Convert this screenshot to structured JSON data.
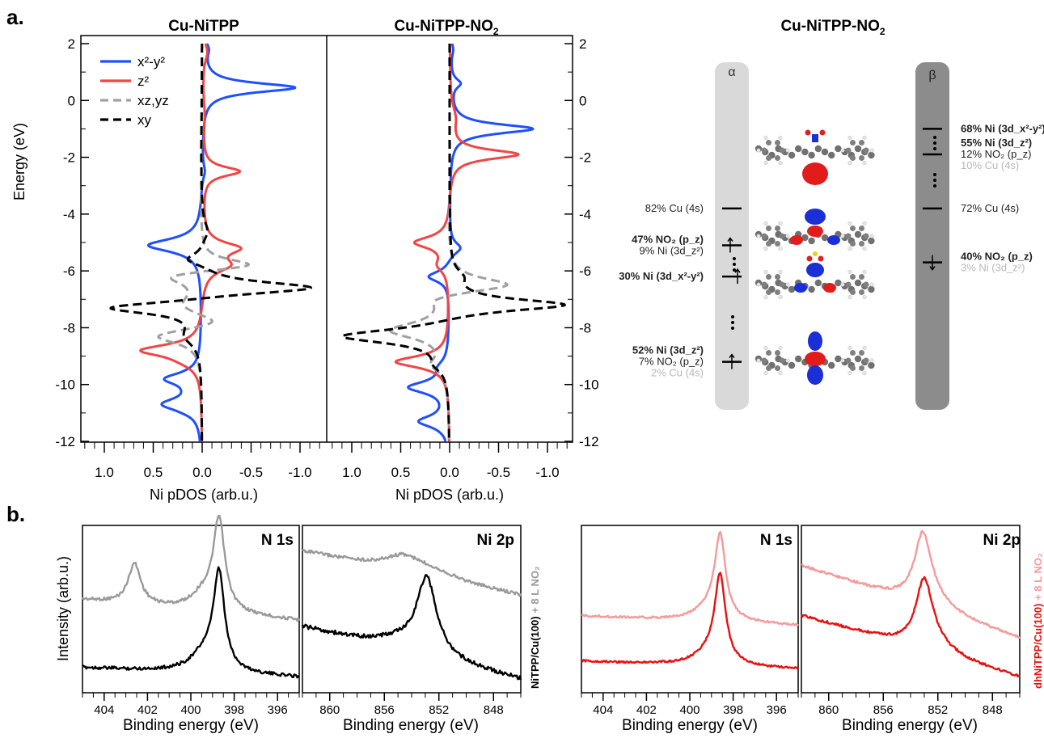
{
  "panel_labels": {
    "a": "a.",
    "b": "b."
  },
  "pdos": {
    "left_title": "Cu-NiTPP",
    "right_title_base": "Cu-NiTPP-NO",
    "right_title_sub": "2",
    "ylabel": "Energy (eV)",
    "xlabel": "Ni pDOS (arb.u.)",
    "legend": [
      {
        "label": "x²-y²",
        "color": "#1f4fff",
        "dash": false
      },
      {
        "label": "z²",
        "color": "#f04646",
        "dash": false
      },
      {
        "label": "xz,yz",
        "color": "#a0a0a0",
        "dash": true
      },
      {
        "label": "xy",
        "color": "#000000",
        "dash": true
      }
    ]
  },
  "orbital_diagram": {
    "title_base": "Cu-NiTPP-NO",
    "title_sub": "2",
    "alpha_label": "α",
    "beta_label": "β",
    "alpha_levels": [
      {
        "energy": -3.8,
        "lines": [
          "82% Cu (4s)"
        ],
        "bold": [
          false
        ]
      },
      {
        "energy": -5.1,
        "lines": [
          "47% NO₂ (p_z)",
          "9% Ni (3d_z²)"
        ],
        "bold": [
          true,
          false
        ]
      },
      {
        "energy": -6.2,
        "lines": [
          "30% Ni (3d_x²-y²)"
        ],
        "bold": [
          true
        ]
      },
      {
        "energy": -9.2,
        "lines": [
          "52% Ni (3d_z²)",
          "7% NO₂ (p_z)",
          "2% Cu (4s)"
        ],
        "bold": [
          true,
          false,
          false
        ]
      }
    ],
    "beta_levels": [
      {
        "energy": -1.0,
        "lines": [
          "68% Ni (3d_x²-y²)"
        ],
        "bold": [
          true
        ]
      },
      {
        "energy": -1.9,
        "lines": [
          "55% Ni (3d_z²)",
          "12% NO₂ (p_z)",
          "10% Cu (4s)"
        ],
        "bold": [
          true,
          false,
          false
        ]
      },
      {
        "energy": -3.8,
        "lines": [
          "72% Cu (4s)"
        ],
        "bold": [
          false
        ]
      },
      {
        "energy": -5.7,
        "lines": [
          "40% NO₂ (p_z)",
          "3% Ni (3d_z²)"
        ],
        "bold": [
          true,
          false
        ]
      }
    ]
  },
  "xps": {
    "xlabel": "Binding energy (eV)",
    "ylabel": "Intensity (arb.u.)",
    "n1s_title": "N 1s",
    "ni2p_title": "Ni 2p",
    "left_side_label_black": "NiTPP/Cu(100)",
    "left_side_label_grey": " + 8 L NO₂",
    "right_side_label_red": "dhNiTPP/Cu(100)",
    "right_side_label_pink": " + 8 L NO₂",
    "colors": {
      "grey": "#9a9a9a",
      "black": "#000000",
      "pink": "#f59a9a",
      "red": "#e81010"
    }
  },
  "chart_data": [
    {
      "type": "line",
      "title": "Cu-NiTPP",
      "xlabel": "Ni pDOS (arb.u.)",
      "ylabel": "Energy (eV)",
      "xlim": [
        1.0,
        -1.0
      ],
      "ylim": [
        -12,
        2
      ],
      "xticks": [
        "1.0",
        "0.5",
        "0.0",
        "-0.5",
        "-1.0"
      ],
      "yticks": [
        "2",
        "0",
        "-2",
        "-4",
        "-6",
        "-8",
        "-10",
        "-12"
      ],
      "series": [
        {
          "name": "x²-y²",
          "energy": [
            -11,
            -10.7,
            -10.2,
            -9.8,
            -9.3,
            -5.1,
            -2.5,
            0.5,
            1.5
          ],
          "pdos": [
            0.02,
            0.38,
            0.03,
            0.35,
            0.02,
            0.55,
            0.03,
            -0.95,
            0.03
          ]
        },
        {
          "name": "z²",
          "energy": [
            -8.8,
            -5.2,
            -2.5,
            0.3
          ],
          "pdos": [
            0.6,
            -0.35,
            -0.38,
            -0.02
          ]
        },
        {
          "name": "xz,yz",
          "energy": [
            -8.3,
            -7.8,
            -6.2,
            -5.8
          ],
          "pdos": [
            0.5,
            -0.3,
            0.45,
            -0.65
          ]
        },
        {
          "name": "xy",
          "energy": [
            -7.3,
            -6.6,
            -5.5
          ],
          "pdos": [
            1.0,
            -1.2,
            0.15
          ]
        }
      ]
    },
    {
      "type": "line",
      "title": "Cu-NiTPP-NO2",
      "xlabel": "Ni pDOS (arb.u.)",
      "ylabel": "Energy (eV)",
      "xlim": [
        1.0,
        -1.0
      ],
      "ylim": [
        -12,
        2
      ],
      "xticks": [
        "1.0",
        "0.5",
        "0.0",
        "-0.5",
        "-1.0"
      ],
      "yticks": [
        "2",
        "0",
        "-2",
        "-4",
        "-6",
        "-8",
        "-10",
        "-12"
      ],
      "series": [
        {
          "name": "x²-y²",
          "energy": [
            -11.3,
            -10.1,
            -6.2,
            -5.1,
            -1.0,
            0.7
          ],
          "pdos": [
            0.3,
            0.4,
            0.2,
            -0.15,
            -0.85,
            -0.1
          ]
        },
        {
          "name": "z²",
          "energy": [
            -9.2,
            -5.0,
            -1.9
          ],
          "pdos": [
            0.55,
            0.35,
            -0.7
          ]
        },
        {
          "name": "xz,yz",
          "energy": [
            -8.1,
            -7.0,
            -6.5
          ],
          "pdos": [
            0.6,
            0.25,
            -0.7
          ]
        },
        {
          "name": "xy",
          "energy": [
            -8.3,
            -7.2
          ],
          "pdos": [
            1.15,
            -1.2
          ]
        }
      ]
    },
    {
      "type": "line",
      "title": "N 1s",
      "xlabel": "Binding energy (eV)",
      "ylabel": "Intensity (arb.u.)",
      "xlim": [
        405,
        395
      ],
      "xticks": [
        "404",
        "402",
        "400",
        "398",
        "396"
      ],
      "peaks": [
        {
          "series": "NiTPP/Cu(100) + 8 L NO2",
          "positions": [
            402.6,
            398.7
          ]
        },
        {
          "series": "NiTPP/Cu(100)",
          "positions": [
            398.7
          ]
        }
      ]
    },
    {
      "type": "line",
      "title": "Ni 2p",
      "xlabel": "Binding energy (eV)",
      "ylabel": "Intensity (arb.u.)",
      "xlim": [
        862,
        846
      ],
      "xticks": [
        "860",
        "856",
        "852",
        "848"
      ],
      "peaks": [
        {
          "series": "NiTPP/Cu(100) + 8 L NO2",
          "positions": [
            854.6
          ]
        },
        {
          "series": "NiTPP/Cu(100)",
          "positions": [
            852.9
          ]
        }
      ]
    },
    {
      "type": "line",
      "title": "N 1s",
      "xlabel": "Binding energy (eV)",
      "xlim": [
        405,
        395
      ],
      "xticks": [
        "404",
        "402",
        "400",
        "398",
        "396"
      ],
      "peaks": [
        {
          "series": "dhNiTPP/Cu(100) + 8 L NO2",
          "positions": [
            398.6
          ]
        },
        {
          "series": "dhNiTPP/Cu(100)",
          "positions": [
            398.6
          ]
        }
      ]
    },
    {
      "type": "line",
      "title": "Ni 2p",
      "xlabel": "Binding energy (eV)",
      "xlim": [
        862,
        846
      ],
      "xticks": [
        "860",
        "856",
        "852",
        "848"
      ],
      "peaks": [
        {
          "series": "dhNiTPP/Cu(100) + 8 L NO2",
          "positions": [
            853.1
          ]
        },
        {
          "series": "dhNiTPP/Cu(100)",
          "positions": [
            853.0
          ]
        }
      ]
    }
  ]
}
